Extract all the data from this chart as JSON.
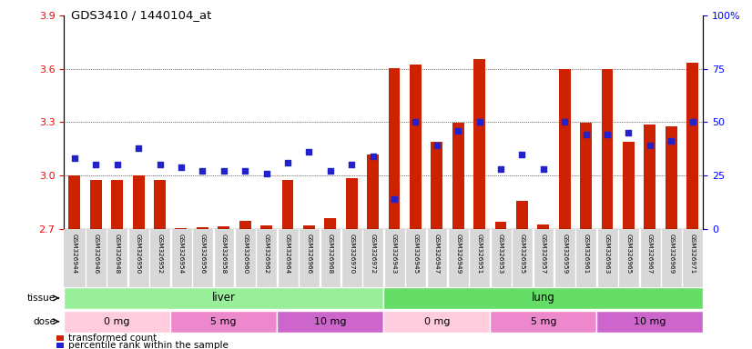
{
  "title": "GDS3410 / 1440104_at",
  "samples": [
    "GSM326944",
    "GSM326946",
    "GSM326948",
    "GSM326950",
    "GSM326952",
    "GSM326954",
    "GSM326956",
    "GSM326958",
    "GSM326960",
    "GSM326962",
    "GSM326964",
    "GSM326966",
    "GSM326968",
    "GSM326970",
    "GSM326972",
    "GSM326943",
    "GSM326945",
    "GSM326947",
    "GSM326949",
    "GSM326951",
    "GSM326953",
    "GSM326955",
    "GSM326957",
    "GSM326959",
    "GSM326961",
    "GSM326963",
    "GSM326965",
    "GSM326967",
    "GSM326969",
    "GSM326971"
  ],
  "bar_values": [
    3.0,
    2.975,
    2.975,
    3.0,
    2.975,
    2.705,
    2.71,
    2.715,
    2.745,
    2.72,
    2.975,
    2.72,
    2.76,
    2.985,
    3.12,
    3.602,
    3.625,
    3.19,
    3.295,
    3.655,
    2.74,
    2.855,
    2.725,
    3.6,
    3.295,
    3.6,
    3.19,
    3.285,
    3.275,
    3.635
  ],
  "percentile_values": [
    33,
    30,
    30,
    38,
    30,
    29,
    27,
    27,
    27,
    26,
    31,
    36,
    27,
    30,
    34,
    14,
    50,
    39,
    46,
    50,
    28,
    35,
    28,
    50,
    44,
    44,
    45,
    39,
    41,
    50
  ],
  "y_min": 2.7,
  "y_max": 3.9,
  "y_ticks_left": [
    2.7,
    3.0,
    3.3,
    3.6,
    3.9
  ],
  "y_ticks_right_labels": [
    "0",
    "25",
    "50",
    "75",
    "100%"
  ],
  "y_ticks_right": [
    0,
    25,
    50,
    75,
    100
  ],
  "bar_color": "#CC2200",
  "dot_color": "#2222CC",
  "liver_color": "#99EE99",
  "lung_color": "#66DD66",
  "dose_color_0mg": "#FFCCDD",
  "dose_color_5mg": "#EE88CC",
  "dose_color_10mg": "#CC66CC",
  "n_liver": 15,
  "n_lung": 15,
  "dose_sizes_liver": [
    5,
    5,
    5
  ],
  "dose_sizes_lung": [
    5,
    5,
    5
  ],
  "dose_labels": [
    "0 mg",
    "5 mg",
    "10 mg"
  ],
  "tick_label_bg": "#D8D8D8",
  "legend_label1": "transformed count",
  "legend_label2": "percentile rank within the sample"
}
